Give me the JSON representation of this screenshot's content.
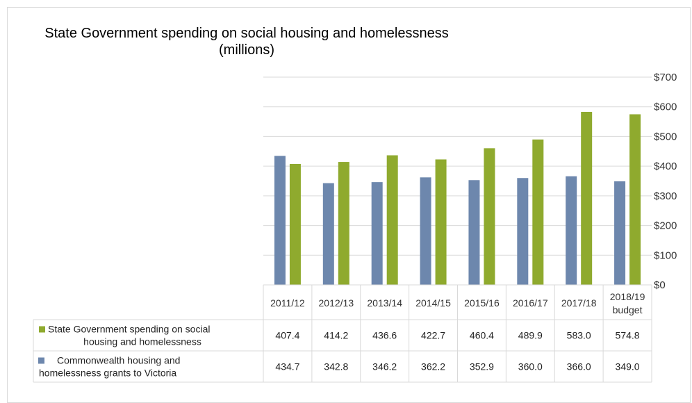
{
  "chart_data": {
    "type": "bar",
    "title_line1": "State Government spending on social housing and homelessness",
    "title_line2": "(millions)",
    "categories": [
      [
        "2011/12"
      ],
      [
        "2012/13"
      ],
      [
        "2013/14"
      ],
      [
        "2014/15"
      ],
      [
        "2015/16"
      ],
      [
        "2016/17"
      ],
      [
        "2017/18"
      ],
      [
        "2018/19",
        "budget"
      ]
    ],
    "yticks": [
      "$0",
      "$100",
      "$200",
      "$300",
      "$400",
      "$500",
      "$600",
      "$700"
    ],
    "ylim": [
      0,
      700
    ],
    "grid": true,
    "legend_placement": "data-table",
    "series": [
      {
        "name": "State Government spending on social housing and homelessness",
        "legend_lines": [
          "State Government spending on social",
          "housing and homelessness"
        ],
        "color": "#8faa2e",
        "values": [
          407.4,
          414.2,
          436.6,
          422.7,
          460.4,
          489.9,
          583.0,
          574.8
        ],
        "labels": [
          "407.4",
          "414.2",
          "436.6",
          "422.7",
          "460.4",
          "489.9",
          "583.0",
          "574.8"
        ]
      },
      {
        "name": "Commonwealth housing and homelessness grants to Victoria",
        "legend_lines": [
          "Commonwealth housing and",
          "homelessness grants to Victoria"
        ],
        "color": "#6d87ad",
        "values": [
          434.7,
          342.8,
          346.2,
          362.2,
          352.9,
          360.0,
          366.0,
          349.0
        ],
        "labels": [
          "434.7",
          "342.8",
          "346.2",
          "362.2",
          "352.9",
          "360.0",
          "366.0",
          "349.0"
        ]
      }
    ]
  }
}
